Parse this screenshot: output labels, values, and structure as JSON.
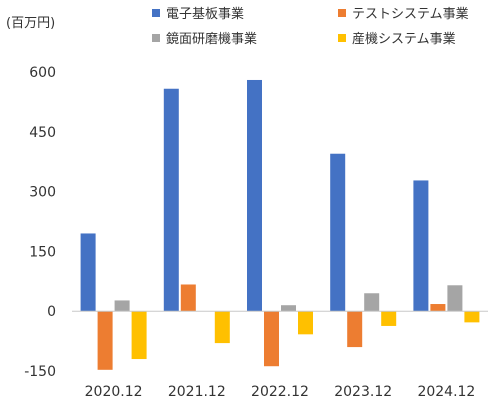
{
  "chart_data": {
    "type": "bar",
    "unit_label": "(百万円)",
    "categories": [
      "2020.12",
      "2021.12",
      "2022.12",
      "2023.12",
      "2024.12"
    ],
    "ylim": [
      -150,
      600
    ],
    "yticks": [
      -150,
      0,
      150,
      300,
      450,
      600
    ],
    "grid": false,
    "legend_placement": "top",
    "series": [
      {
        "name": "電子基板事業",
        "color": "#4472C4",
        "values": [
          195,
          558,
          580,
          395,
          328
        ]
      },
      {
        "name": "テストシステム事業",
        "color": "#ED7D31",
        "values": [
          -147,
          67,
          -138,
          -90,
          18
        ]
      },
      {
        "name": "鏡面研磨機事業",
        "color": "#A5A5A5",
        "values": [
          27,
          0,
          15,
          45,
          65
        ]
      },
      {
        "name": "産機システム事業",
        "color": "#FFC000",
        "values": [
          -120,
          -80,
          -58,
          -37,
          -28
        ]
      }
    ]
  }
}
